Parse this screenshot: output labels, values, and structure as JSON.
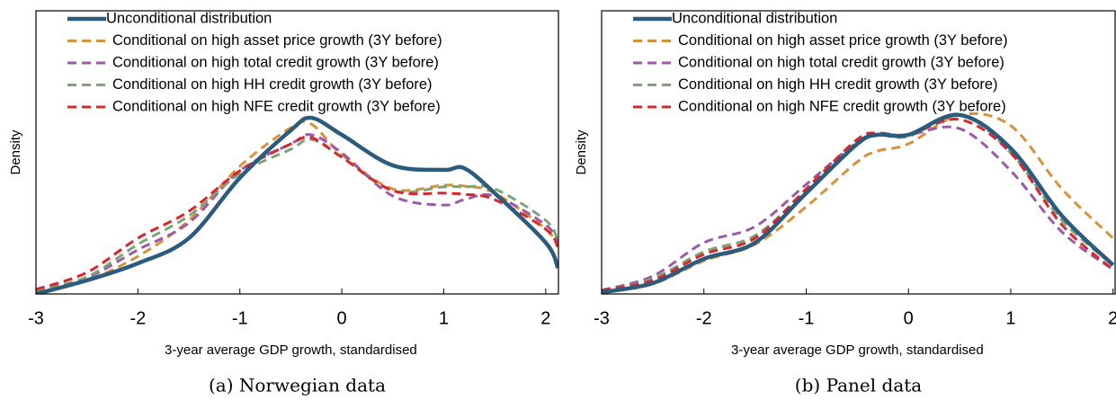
{
  "chart_data": [
    {
      "type": "line",
      "caption": "(a) Norwegian data",
      "x_label": "3-year average GDP growth, standardised",
      "y_label": "Density",
      "x": [
        -3,
        -2.5,
        -2,
        -1.5,
        -1,
        -0.5,
        -0.3,
        0,
        0.5,
        1,
        1.2,
        1.5,
        2,
        2.12
      ],
      "xlim": [
        -3,
        2.125
      ],
      "ylim": [
        0,
        1
      ],
      "xticks": [
        -3,
        -2,
        -1,
        0,
        1,
        2
      ],
      "legend": "top-left",
      "series": [
        {
          "name": "Unconditional distribution",
          "color": "#2b5b7d",
          "dashed": false,
          "values": [
            0,
            0.048,
            0.108,
            0.197,
            0.41,
            0.578,
            0.622,
            0.562,
            0.454,
            0.438,
            0.444,
            0.356,
            0.181,
            0.092
          ]
        },
        {
          "name": "Conditional on high asset price growth (3Y before)",
          "color": "#d9913a",
          "dashed": true,
          "values": [
            0.006,
            0.048,
            0.133,
            0.26,
            0.451,
            0.587,
            0.6,
            0.492,
            0.371,
            0.384,
            0.381,
            0.356,
            0.229,
            0.165
          ]
        },
        {
          "name": "Conditional on high total credit growth (3Y before)",
          "color": "#9b5aa8",
          "dashed": true,
          "values": [
            0.01,
            0.057,
            0.156,
            0.251,
            0.435,
            0.53,
            0.562,
            0.498,
            0.346,
            0.314,
            0.333,
            0.346,
            0.244,
            0.181
          ]
        },
        {
          "name": "Conditional on high HH credit growth (3Y before)",
          "color": "#7fa27b",
          "dashed": true,
          "values": [
            0.013,
            0.06,
            0.175,
            0.276,
            0.425,
            0.511,
            0.546,
            0.483,
            0.365,
            0.378,
            0.378,
            0.371,
            0.26,
            0.187
          ]
        },
        {
          "name": "Conditional on high NFE credit growth (3Y before)",
          "color": "#d8262b",
          "dashed": true,
          "values": [
            0.016,
            0.076,
            0.197,
            0.292,
            0.435,
            0.53,
            0.552,
            0.483,
            0.365,
            0.356,
            0.352,
            0.333,
            0.229,
            0.165
          ]
        }
      ]
    },
    {
      "type": "line",
      "caption": "(b) Panel data",
      "x_label": "3-year average GDP growth, standardised",
      "y_label": "Density",
      "x": [
        -3,
        -2.5,
        -2,
        -1.5,
        -1,
        -0.5,
        -0.3,
        0,
        0.5,
        1,
        1.5,
        2
      ],
      "xlim": [
        -3,
        2.02
      ],
      "ylim": [
        0,
        1
      ],
      "xticks": [
        -3,
        -2,
        -1,
        0,
        1,
        2
      ],
      "legend": "top-left",
      "series": [
        {
          "name": "Unconditional distribution",
          "color": "#2b5b7d",
          "dashed": false,
          "values": [
            0.006,
            0.038,
            0.124,
            0.181,
            0.356,
            0.53,
            0.562,
            0.562,
            0.632,
            0.514,
            0.276,
            0.102
          ]
        },
        {
          "name": "Conditional on high asset price growth (3Y before)",
          "color": "#d9913a",
          "dashed": true,
          "values": [
            0.006,
            0.035,
            0.117,
            0.175,
            0.308,
            0.467,
            0.505,
            0.53,
            0.632,
            0.594,
            0.371,
            0.197
          ]
        },
        {
          "name": "Conditional on high total credit growth (3Y before)",
          "color": "#9b5aa8",
          "dashed": true,
          "values": [
            0.013,
            0.063,
            0.181,
            0.238,
            0.387,
            0.537,
            0.562,
            0.562,
            0.584,
            0.435,
            0.219,
            0.086
          ]
        },
        {
          "name": "Conditional on high HH credit growth (3Y before)",
          "color": "#7fa27b",
          "dashed": true,
          "values": [
            0.01,
            0.054,
            0.149,
            0.206,
            0.365,
            0.537,
            0.562,
            0.556,
            0.635,
            0.498,
            0.26,
            0.102
          ]
        },
        {
          "name": "Conditional on high NFE credit growth (3Y before)",
          "color": "#d8262b",
          "dashed": true,
          "values": [
            0.013,
            0.048,
            0.14,
            0.197,
            0.371,
            0.546,
            0.568,
            0.562,
            0.616,
            0.498,
            0.244,
            0.086
          ]
        }
      ]
    }
  ]
}
